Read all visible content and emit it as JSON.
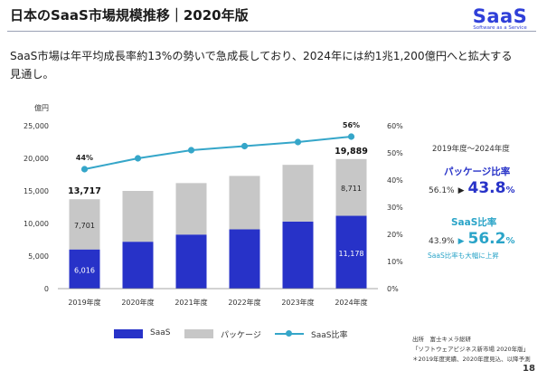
{
  "title": "日本のSaaS市場規模推移｜2020年版",
  "logo": {
    "main": "SaaS",
    "sub": "Software as a Service"
  },
  "lead": "SaaS市場は年平均成長率約13%の勢いで急成長しており、2024年には約1兆1,200億円へと拡大する見通し。",
  "chart_data": {
    "type": "bar",
    "stacked": true,
    "categories": [
      "2019年度",
      "2020年度",
      "2021年度",
      "2022年度",
      "2023年度",
      "2024年度"
    ],
    "series": [
      {
        "name": "SaaS",
        "type": "bar",
        "color": "#2732c8",
        "values": [
          6016,
          7200,
          8300,
          9100,
          10300,
          11178
        ]
      },
      {
        "name": "パッケージ",
        "type": "bar",
        "color": "#c7c7c7",
        "values": [
          7701,
          7800,
          7900,
          8200,
          8700,
          8711
        ]
      },
      {
        "name": "SaaS比率",
        "type": "line",
        "color": "#35a6c9",
        "axis": "right",
        "values": [
          44,
          48,
          51,
          52.5,
          54,
          56
        ]
      }
    ],
    "totals": [
      13717,
      15000,
      16200,
      17300,
      19000,
      19889
    ],
    "data_labels": {
      "saas": [
        "6,016",
        "",
        "",
        "",
        "",
        "11,178"
      ],
      "package": [
        "7,701",
        "",
        "",
        "",
        "",
        "8,711"
      ],
      "total": [
        "13,717",
        "",
        "",
        "",
        "",
        "19,889"
      ],
      "ratio": [
        "44%",
        "",
        "",
        "",
        "",
        "56%"
      ]
    },
    "y_left": {
      "unit": "億円",
      "ticks": [
        "0",
        "5,000",
        "10,000",
        "15,000",
        "20,000",
        "25,000"
      ],
      "range": [
        0,
        25000
      ]
    },
    "y_right": {
      "ticks": [
        "0%",
        "10%",
        "20%",
        "30%",
        "40%",
        "50%",
        "60%"
      ],
      "range": [
        0,
        60
      ]
    },
    "grid": false,
    "legend_position": "bottom"
  },
  "legend": [
    "SaaS",
    "パッケージ",
    "SaaS比率"
  ],
  "panel": {
    "range": "2019年度〜2024年度",
    "package_label": "パッケージ比率",
    "package_from": "56.1%",
    "package_to": "43.8",
    "saas_label": "SaaS比率",
    "saas_from": "43.9%",
    "saas_to": "56.2",
    "percent": "%",
    "arrow": "▶",
    "note": "SaaS比率も大幅に上昇",
    "colors": {
      "package": "#2732c8",
      "saas": "#2aa4c8"
    }
  },
  "source": {
    "line1": "出所　富士キメラ総研",
    "line2": "「ソフトウェアビジネス新市場 2020年版」",
    "line3": "＊2019年度実績、2020年度見込、以降予測"
  },
  "page_number": "18"
}
